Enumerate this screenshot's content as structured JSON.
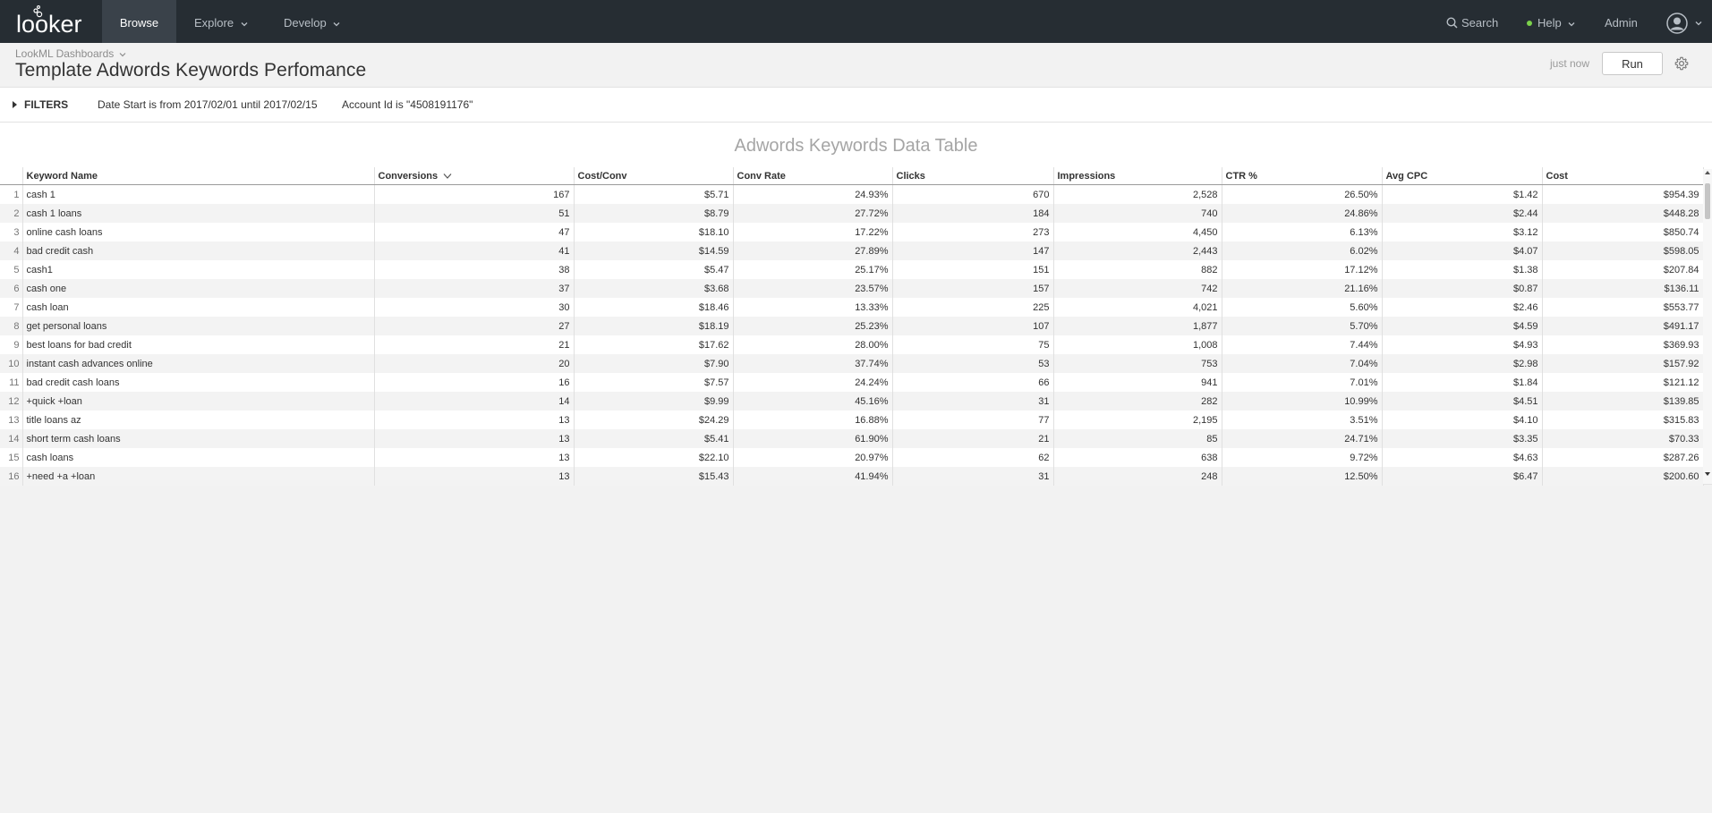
{
  "nav": {
    "logo": "looker",
    "browse": "Browse",
    "explore": "Explore",
    "develop": "Develop",
    "search": "Search",
    "help": "Help",
    "admin": "Admin"
  },
  "header": {
    "breadcrumb": "LookML Dashboards",
    "title": "Template Adwords Keywords Perfomance",
    "updated": "just now",
    "run_label": "Run"
  },
  "filters": {
    "label": "FILTERS",
    "items": [
      "Date Start is from 2017/02/01 until 2017/02/15",
      "Account Id is \"4508191176\""
    ]
  },
  "tile": {
    "title": "Adwords Keywords Data Table",
    "columns": [
      "Keyword Name",
      "Conversions",
      "Cost/Conv",
      "Conv Rate",
      "Clicks",
      "Impressions",
      "CTR %",
      "Avg CPC",
      "Cost"
    ],
    "rows": [
      [
        "1",
        "cash 1",
        "167",
        "$5.71",
        "24.93%",
        "670",
        "2,528",
        "26.50%",
        "$1.42",
        "$954.39"
      ],
      [
        "2",
        "cash 1 loans",
        "51",
        "$8.79",
        "27.72%",
        "184",
        "740",
        "24.86%",
        "$2.44",
        "$448.28"
      ],
      [
        "3",
        "online cash loans",
        "47",
        "$18.10",
        "17.22%",
        "273",
        "4,450",
        "6.13%",
        "$3.12",
        "$850.74"
      ],
      [
        "4",
        "bad credit cash",
        "41",
        "$14.59",
        "27.89%",
        "147",
        "2,443",
        "6.02%",
        "$4.07",
        "$598.05"
      ],
      [
        "5",
        "cash1",
        "38",
        "$5.47",
        "25.17%",
        "151",
        "882",
        "17.12%",
        "$1.38",
        "$207.84"
      ],
      [
        "6",
        "cash one",
        "37",
        "$3.68",
        "23.57%",
        "157",
        "742",
        "21.16%",
        "$0.87",
        "$136.11"
      ],
      [
        "7",
        "cash loan",
        "30",
        "$18.46",
        "13.33%",
        "225",
        "4,021",
        "5.60%",
        "$2.46",
        "$553.77"
      ],
      [
        "8",
        "get personal loans",
        "27",
        "$18.19",
        "25.23%",
        "107",
        "1,877",
        "5.70%",
        "$4.59",
        "$491.17"
      ],
      [
        "9",
        "best loans for bad credit",
        "21",
        "$17.62",
        "28.00%",
        "75",
        "1,008",
        "7.44%",
        "$4.93",
        "$369.93"
      ],
      [
        "10",
        "instant cash advances online",
        "20",
        "$7.90",
        "37.74%",
        "53",
        "753",
        "7.04%",
        "$2.98",
        "$157.92"
      ],
      [
        "11",
        "bad credit cash loans",
        "16",
        "$7.57",
        "24.24%",
        "66",
        "941",
        "7.01%",
        "$1.84",
        "$121.12"
      ],
      [
        "12",
        "+quick +loan",
        "14",
        "$9.99",
        "45.16%",
        "31",
        "282",
        "10.99%",
        "$4.51",
        "$139.85"
      ],
      [
        "13",
        "title loans az",
        "13",
        "$24.29",
        "16.88%",
        "77",
        "2,195",
        "3.51%",
        "$4.10",
        "$315.83"
      ],
      [
        "14",
        "short term cash loans",
        "13",
        "$5.41",
        "61.90%",
        "21",
        "85",
        "24.71%",
        "$3.35",
        "$70.33"
      ],
      [
        "15",
        "cash loans",
        "13",
        "$22.10",
        "20.97%",
        "62",
        "638",
        "9.72%",
        "$4.63",
        "$287.26"
      ],
      [
        "16",
        "+need +a +loan",
        "13",
        "$15.43",
        "41.94%",
        "31",
        "248",
        "12.50%",
        "$6.47",
        "$200.60"
      ]
    ]
  }
}
